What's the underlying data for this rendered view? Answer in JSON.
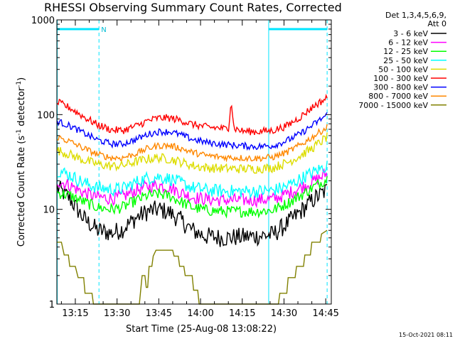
{
  "chart_data": {
    "type": "line",
    "title": "RHESSI Observing Summary Count Rates, Corrected",
    "xlabel": "Start Time (25-Aug-08 13:08:22)",
    "ylabel_parts": [
      "Corrected Count Rate (s",
      "-1",
      " detector",
      "-1",
      ")"
    ],
    "y_scale": "log",
    "ylim": [
      1,
      1000
    ],
    "xlim_minutes": [
      788.37,
      887.0
    ],
    "x_ticks": [
      {
        "label": "13:15",
        "minutes": 795
      },
      {
        "label": "13:30",
        "minutes": 810
      },
      {
        "label": "13:45",
        "minutes": 825
      },
      {
        "label": "14:00",
        "minutes": 840
      },
      {
        "label": "14:15",
        "minutes": 855
      },
      {
        "label": "14:30",
        "minutes": 870
      },
      {
        "label": "14:45",
        "minutes": 885
      }
    ],
    "y_ticks": [
      {
        "label": "1",
        "value": 1
      },
      {
        "label": "10",
        "value": 10
      },
      {
        "label": "100",
        "value": 100
      },
      {
        "label": "1000",
        "value": 1000
      }
    ],
    "legend_header": [
      "Det 1,3,4,5,6,9,",
      "Att 0"
    ],
    "flag_label": "N",
    "night_intervals_minutes": [
      [
        788.5,
        803.5
      ],
      [
        864.5,
        885.5
      ]
    ],
    "saa_vlines_minutes": [
      788.5,
      803.5,
      864.5,
      885.5
    ],
    "series": [
      {
        "name": "3 - 6 keV",
        "color": "#000000",
        "points": [
          [
            788.5,
            17
          ],
          [
            793,
            13
          ],
          [
            798,
            8
          ],
          [
            803,
            6
          ],
          [
            808,
            5.6
          ],
          [
            812,
            6.2
          ],
          [
            817,
            8.2
          ],
          [
            821,
            9.5
          ],
          [
            825,
            10
          ],
          [
            829,
            9.2
          ],
          [
            833,
            7.6
          ],
          [
            837,
            6
          ],
          [
            842,
            5.2
          ],
          [
            848,
            5
          ],
          [
            854,
            5.1
          ],
          [
            860,
            5.2
          ],
          [
            866,
            5.4
          ],
          [
            871,
            7
          ],
          [
            876,
            9.5
          ],
          [
            881,
            13
          ],
          [
            885.5,
            16
          ]
        ]
      },
      {
        "name": "6 - 12 keV",
        "color": "#ff00ff",
        "points": [
          [
            788.5,
            20
          ],
          [
            793,
            18
          ],
          [
            798,
            15
          ],
          [
            803,
            13.5
          ],
          [
            808,
            13
          ],
          [
            812,
            13.6
          ],
          [
            817,
            16
          ],
          [
            821,
            17.5
          ],
          [
            825,
            18
          ],
          [
            829,
            17
          ],
          [
            833,
            15
          ],
          [
            837,
            13.5
          ],
          [
            842,
            12.8
          ],
          [
            848,
            12.5
          ],
          [
            854,
            12.5
          ],
          [
            860,
            12.6
          ],
          [
            866,
            12.8
          ],
          [
            871,
            14.5
          ],
          [
            876,
            17
          ],
          [
            881,
            20
          ],
          [
            885.5,
            24
          ]
        ]
      },
      {
        "name": "12 - 25 keV",
        "color": "#00ff00",
        "points": [
          [
            788.5,
            15
          ],
          [
            793,
            14
          ],
          [
            798,
            12
          ],
          [
            803,
            10.5
          ],
          [
            808,
            10
          ],
          [
            812,
            10.5
          ],
          [
            817,
            12.5
          ],
          [
            821,
            14
          ],
          [
            825,
            14.5
          ],
          [
            829,
            13.8
          ],
          [
            833,
            12
          ],
          [
            837,
            10.5
          ],
          [
            842,
            9.8
          ],
          [
            848,
            9.5
          ],
          [
            854,
            9.5
          ],
          [
            860,
            9.5
          ],
          [
            866,
            9.8
          ],
          [
            871,
            11.5
          ],
          [
            876,
            14
          ],
          [
            881,
            17.5
          ],
          [
            885.5,
            21
          ]
        ]
      },
      {
        "name": "25 - 50 keV",
        "color": "#00ffff",
        "points": [
          [
            788.5,
            26
          ],
          [
            793,
            23
          ],
          [
            798,
            19
          ],
          [
            803,
            17
          ],
          [
            808,
            16.2
          ],
          [
            812,
            16.5
          ],
          [
            817,
            19.5
          ],
          [
            821,
            21.5
          ],
          [
            825,
            22
          ],
          [
            829,
            21
          ],
          [
            833,
            19
          ],
          [
            837,
            17
          ],
          [
            842,
            16
          ],
          [
            848,
            15.6
          ],
          [
            854,
            15.5
          ],
          [
            860,
            15.5
          ],
          [
            866,
            15.8
          ],
          [
            871,
            17.5
          ],
          [
            876,
            21
          ],
          [
            881,
            25
          ],
          [
            885.5,
            29
          ]
        ]
      },
      {
        "name": "50 - 100 keV",
        "color": "#dddd00",
        "points": [
          [
            788.5,
            42
          ],
          [
            793,
            38
          ],
          [
            798,
            33
          ],
          [
            803,
            30
          ],
          [
            808,
            28.5
          ],
          [
            812,
            29
          ],
          [
            817,
            32
          ],
          [
            821,
            34
          ],
          [
            825,
            35
          ],
          [
            829,
            34
          ],
          [
            833,
            31.5
          ],
          [
            837,
            29
          ],
          [
            842,
            27.5
          ],
          [
            848,
            27
          ],
          [
            854,
            26.8
          ],
          [
            860,
            26.8
          ],
          [
            866,
            27.5
          ],
          [
            871,
            31
          ],
          [
            876,
            37
          ],
          [
            881,
            46
          ],
          [
            885.5,
            58
          ]
        ]
      },
      {
        "name": "100 - 300 keV",
        "color": "#ff0000",
        "points": [
          [
            788.5,
            135
          ],
          [
            793,
            118
          ],
          [
            798,
            95
          ],
          [
            803,
            78
          ],
          [
            808,
            69
          ],
          [
            812,
            68
          ],
          [
            817,
            76
          ],
          [
            821,
            86
          ],
          [
            825,
            92
          ],
          [
            829,
            92
          ],
          [
            833,
            87
          ],
          [
            837,
            79
          ],
          [
            842,
            74
          ],
          [
            847,
            72
          ],
          [
            850,
            70
          ],
          [
            851,
            145
          ],
          [
            852,
            72
          ],
          [
            855,
            67
          ],
          [
            860,
            66
          ],
          [
            866,
            68
          ],
          [
            871,
            76
          ],
          [
            876,
            95
          ],
          [
            881,
            125
          ],
          [
            885.5,
            150
          ]
        ]
      },
      {
        "name": "300 - 800 keV",
        "color": "#0000ff",
        "points": [
          [
            788.5,
            85
          ],
          [
            793,
            76
          ],
          [
            798,
            64
          ],
          [
            803,
            54
          ],
          [
            808,
            49
          ],
          [
            812,
            49
          ],
          [
            817,
            55
          ],
          [
            821,
            62
          ],
          [
            825,
            66
          ],
          [
            829,
            66
          ],
          [
            833,
            61
          ],
          [
            837,
            55
          ],
          [
            842,
            51
          ],
          [
            848,
            48.5
          ],
          [
            854,
            47
          ],
          [
            860,
            46
          ],
          [
            866,
            47
          ],
          [
            871,
            53
          ],
          [
            876,
            63
          ],
          [
            881,
            80
          ],
          [
            885.5,
            100
          ]
        ]
      },
      {
        "name": "800 - 7000 keV",
        "color": "#ff8800",
        "points": [
          [
            788.5,
            58
          ],
          [
            793,
            52
          ],
          [
            798,
            44
          ],
          [
            803,
            38
          ],
          [
            808,
            35
          ],
          [
            812,
            35
          ],
          [
            817,
            39
          ],
          [
            821,
            44
          ],
          [
            825,
            47
          ],
          [
            829,
            47
          ],
          [
            833,
            44
          ],
          [
            837,
            40
          ],
          [
            842,
            37
          ],
          [
            848,
            35.5
          ],
          [
            854,
            35
          ],
          [
            860,
            34.5
          ],
          [
            866,
            35.5
          ],
          [
            871,
            40
          ],
          [
            876,
            48
          ],
          [
            881,
            60
          ],
          [
            885.5,
            74
          ]
        ]
      },
      {
        "name": "7000 - 15000 keV",
        "color": "#808000",
        "points": [
          [
            788.5,
            4.5
          ],
          [
            790,
            4.5
          ],
          [
            791,
            3.3
          ],
          [
            792.5,
            3.3
          ],
          [
            793,
            2.5
          ],
          [
            795,
            2.5
          ],
          [
            796,
            1.9
          ],
          [
            798,
            1.9
          ],
          [
            798.5,
            1.3
          ],
          [
            801,
            1.3
          ],
          [
            801.5,
            1
          ],
          [
            818,
            1
          ],
          [
            818.5,
            1.4
          ],
          [
            819,
            2
          ],
          [
            820,
            2
          ],
          [
            820.5,
            1.5
          ],
          [
            821,
            1.5
          ],
          [
            821.5,
            2.5
          ],
          [
            822.5,
            2.5
          ],
          [
            823,
            3.2
          ],
          [
            824,
            3.7
          ],
          [
            830,
            3.7
          ],
          [
            830.5,
            3.2
          ],
          [
            832,
            3.2
          ],
          [
            832.5,
            2.5
          ],
          [
            834,
            2.5
          ],
          [
            834.5,
            2
          ],
          [
            837,
            2
          ],
          [
            837.5,
            1.4
          ],
          [
            839,
            1.4
          ],
          [
            839.5,
            1
          ],
          [
            868,
            1
          ],
          [
            868.5,
            1.3
          ],
          [
            871,
            1.3
          ],
          [
            871.5,
            1.9
          ],
          [
            874,
            1.9
          ],
          [
            874.5,
            2.5
          ],
          [
            877,
            2.5
          ],
          [
            877.5,
            3.3
          ],
          [
            879.5,
            3.3
          ],
          [
            880,
            4.5
          ],
          [
            883,
            4.5
          ],
          [
            883.5,
            5.5
          ],
          [
            885.5,
            6
          ]
        ]
      }
    ]
  },
  "footer": {
    "timestamp": "15-Oct-2021 08:11"
  }
}
